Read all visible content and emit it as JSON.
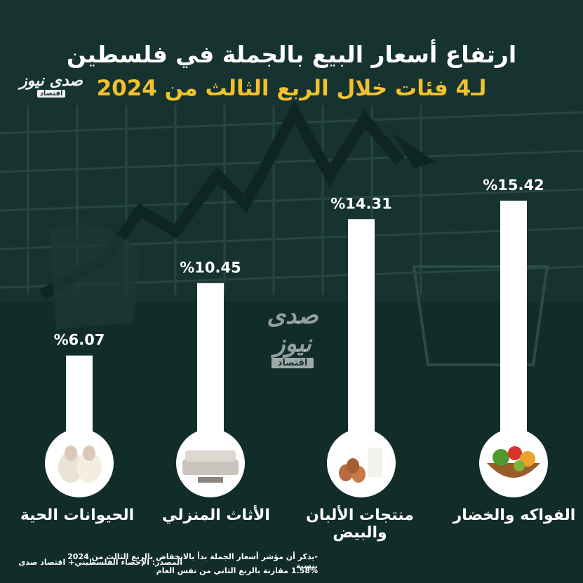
{
  "header": {
    "title": "ارتفاع أسعار البيع بالجملة في فلسطين",
    "subtitle": "لـ4 فئات خلال الربع الثالث من 2024"
  },
  "branding": {
    "logo_text": "صدى نيوز",
    "logo_sub": "اقتصاد"
  },
  "chart_data": {
    "type": "bar",
    "categories": [
      "الحيوانات الحية",
      "الأثاث المنزلي",
      "منتجات الألبان والبيض",
      "الفواكه والخضار"
    ],
    "values": [
      6.07,
      10.45,
      14.31,
      15.42
    ],
    "value_labels": [
      "%6.07",
      "%10.45",
      "%14.31",
      "%15.42"
    ],
    "icons": [
      "sheep-icon",
      "furniture-icon",
      "dairy-eggs-icon",
      "fruit-basket-icon"
    ],
    "ylim": [
      0,
      16
    ],
    "bar_color": "#ffffff",
    "label_color": "#ffffff"
  },
  "footer": {
    "note_line1": "-يذكر أن مؤشر أسعار الجملة بدأ بالانخفاض بالربع الثالث من 2024 بنسبة",
    "note_line2": "1.58% مقارنة بالربع الثاني من نفس العام",
    "source": "المصدر: الإحصاء الفلسطيني+ اقتصاد صدى"
  },
  "colors": {
    "background": "#16332f",
    "accent": "#f2c12e"
  }
}
